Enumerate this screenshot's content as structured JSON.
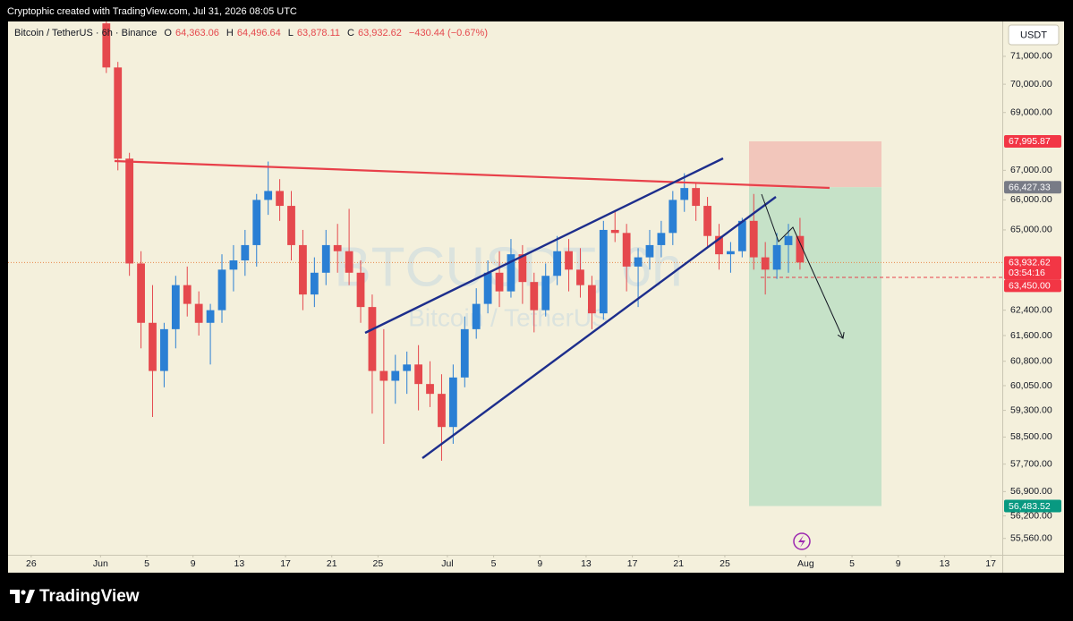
{
  "header": {
    "credit": "Cryptophic created with TradingView.com, Jul 31, 2026 08:05 UTC"
  },
  "footer": {
    "brand": "TradingView"
  },
  "legend": {
    "symbol": "Bitcoin / TetherUS · 6h · Binance",
    "ohlc": [
      {
        "key": "O",
        "value": "64,363.06"
      },
      {
        "key": "H",
        "value": "64,496.64"
      },
      {
        "key": "L",
        "value": "63,878.11"
      },
      {
        "key": "C",
        "value": "63,932.62"
      }
    ],
    "change": "−430.44 (−0.67%)"
  },
  "chart_data": {
    "type": "candlestick",
    "watermark": "BTCUSDT, 6h",
    "watermark_subtitle": "Bitcoin / TetherUS",
    "currency": "USDT",
    "log_scale": true,
    "grid": false,
    "up_color": "#2a7fd4",
    "down_color": "#e5484d",
    "xlim": [
      "May 24",
      "Aug 18"
    ],
    "xticks": [
      {
        "value": "May 26",
        "label": "26"
      },
      {
        "value": "Jun 1",
        "label": "Jun"
      },
      {
        "value": "Jun 5",
        "label": "5"
      },
      {
        "value": "Jun 9",
        "label": "9"
      },
      {
        "value": "Jun 13",
        "label": "13"
      },
      {
        "value": "Jun 17",
        "label": "17"
      },
      {
        "value": "Jun 21",
        "label": "21"
      },
      {
        "value": "Jun 25",
        "label": "25"
      },
      {
        "value": "Jul 1",
        "label": "Jul"
      },
      {
        "value": "Jul 5",
        "label": "5"
      },
      {
        "value": "Jul 9",
        "label": "9"
      },
      {
        "value": "Jul 13",
        "label": "13"
      },
      {
        "value": "Jul 17",
        "label": "17"
      },
      {
        "value": "Jul 21",
        "label": "21"
      },
      {
        "value": "Jul 25",
        "label": "25"
      },
      {
        "value": "Aug 1",
        "label": "Aug"
      },
      {
        "value": "Aug 5",
        "label": "5"
      },
      {
        "value": "Aug 9",
        "label": "9"
      },
      {
        "value": "Aug 13",
        "label": "13"
      },
      {
        "value": "Aug 17",
        "label": "17"
      }
    ],
    "ylim": [
      55100,
      72270
    ],
    "yticks": [
      {
        "value": 71000,
        "label": "71,000.00"
      },
      {
        "value": 70000,
        "label": "70,000.00"
      },
      {
        "value": 69000,
        "label": "69,000.00"
      },
      {
        "value": 67000,
        "label": "67,000.00"
      },
      {
        "value": 66000,
        "label": "66,000.00"
      },
      {
        "value": 65000,
        "label": "65,000.00"
      },
      {
        "value": 62400,
        "label": "62,400.00"
      },
      {
        "value": 61600,
        "label": "61,600.00"
      },
      {
        "value": 60800,
        "label": "60,800.00"
      },
      {
        "value": 60050,
        "label": "60,050.00"
      },
      {
        "value": 59300,
        "label": "59,300.00"
      },
      {
        "value": 58500,
        "label": "58,500.00"
      },
      {
        "value": 57700,
        "label": "57,700.00"
      },
      {
        "value": 56900,
        "label": "56,900.00"
      },
      {
        "value": 56200,
        "label": "56,200.00"
      },
      {
        "value": 55560,
        "label": "55,560.00"
      }
    ],
    "price_tags": [
      {
        "value": 67995.87,
        "label": "67,995.87",
        "color": "#f23645"
      },
      {
        "value": 66427.33,
        "label": "66,427.33",
        "color": "#787b86"
      },
      {
        "value": 63932.62,
        "label": "63,932.62",
        "countdown": "03:54:16",
        "color": "#f23645"
      },
      {
        "value": 63450,
        "label": "63,450.00",
        "color": "#f23645"
      },
      {
        "value": 56483.52,
        "label": "56,483.52",
        "color": "#089981"
      }
    ],
    "candles": {
      "x": [
        "Jun 1",
        "Jun 2",
        "Jun 3",
        "Jun 4",
        "Jun 5",
        "Jun 6",
        "Jun 7",
        "Jun 8",
        "Jun 9",
        "Jun 10",
        "Jun 11",
        "Jun 12",
        "Jun 13",
        "Jun 14",
        "Jun 15",
        "Jun 16",
        "Jun 17",
        "Jun 18",
        "Jun 19",
        "Jun 20",
        "Jun 21",
        "Jun 22",
        "Jun 23",
        "Jun 24",
        "Jun 25",
        "Jun 26",
        "Jun 27",
        "Jun 28",
        "Jun 29",
        "Jun 30",
        "Jul 1",
        "Jul 2",
        "Jul 3",
        "Jul 4",
        "Jul 5",
        "Jul 6",
        "Jul 7",
        "Jul 8",
        "Jul 9",
        "Jul 10",
        "Jul 11",
        "Jul 12",
        "Jul 13",
        "Jul 14",
        "Jul 15",
        "Jul 16",
        "Jul 17",
        "Jul 18",
        "Jul 19",
        "Jul 20",
        "Jul 21",
        "Jul 22",
        "Jul 23",
        "Jul 24",
        "Jul 25",
        "Jul 26",
        "Jul 27",
        "Jul 28",
        "Jul 29",
        "Jul 30",
        "Jul 31"
      ],
      "open": [
        72200,
        70600,
        67400,
        63900,
        62000,
        60500,
        61800,
        63200,
        62600,
        62000,
        62400,
        63700,
        64000,
        64500,
        66000,
        66300,
        65800,
        64500,
        62900,
        63600,
        64500,
        64300,
        63600,
        62500,
        60500,
        60200,
        60500,
        60700,
        60100,
        59800,
        58800,
        60300,
        61800,
        62600,
        63600,
        63000,
        64200,
        63300,
        62400,
        63500,
        64300,
        63700,
        63200,
        62300,
        65000,
        64900,
        63800,
        64100,
        64500,
        64900,
        66000,
        66400,
        65800,
        64800,
        64200,
        64300,
        65300,
        64100,
        63700,
        64500,
        64800
      ],
      "high": [
        72270,
        70800,
        67600,
        64300,
        63200,
        62000,
        63500,
        63800,
        63000,
        62600,
        64200,
        64500,
        65000,
        66200,
        67300,
        66700,
        66300,
        65000,
        64100,
        65000,
        65200,
        65700,
        64000,
        62900,
        61800,
        61000,
        61100,
        61300,
        60800,
        60400,
        60700,
        62200,
        63100,
        64000,
        64300,
        64700,
        64500,
        63600,
        63900,
        64800,
        64700,
        64400,
        63500,
        65300,
        65600,
        65200,
        64400,
        65000,
        65300,
        66300,
        66900,
        66600,
        66100,
        65200,
        64600,
        65400,
        66200,
        64600,
        64900,
        65200,
        65400
      ],
      "low": [
        70400,
        67000,
        63500,
        61200,
        59100,
        60000,
        61200,
        62200,
        61600,
        60700,
        62000,
        63000,
        63500,
        63800,
        65500,
        65300,
        64000,
        62400,
        62500,
        63200,
        63600,
        63200,
        62000,
        59200,
        58300,
        59500,
        59800,
        59300,
        59400,
        57800,
        58300,
        60000,
        61500,
        62300,
        62500,
        62800,
        62600,
        61700,
        62200,
        63200,
        63000,
        62800,
        61800,
        62100,
        64600,
        63000,
        62500,
        63700,
        64100,
        64500,
        65600,
        65300,
        64400,
        63700,
        63600,
        64100,
        63700,
        62900,
        63400,
        63600,
        63700
      ],
      "close": [
        70600,
        67400,
        63900,
        62000,
        60500,
        61800,
        63200,
        62600,
        62000,
        62400,
        63700,
        64000,
        64500,
        66000,
        66300,
        65800,
        64500,
        62900,
        63600,
        64500,
        64300,
        63600,
        62500,
        60500,
        60200,
        60500,
        60700,
        60100,
        59800,
        58800,
        60300,
        61800,
        62600,
        63600,
        63000,
        64200,
        63300,
        62400,
        63500,
        64300,
        63700,
        63200,
        62300,
        65000,
        64900,
        63800,
        64100,
        64500,
        64900,
        66000,
        66400,
        65800,
        64800,
        64200,
        64300,
        65300,
        64100,
        63700,
        64500,
        64800,
        63932.62
      ]
    }
  }
}
